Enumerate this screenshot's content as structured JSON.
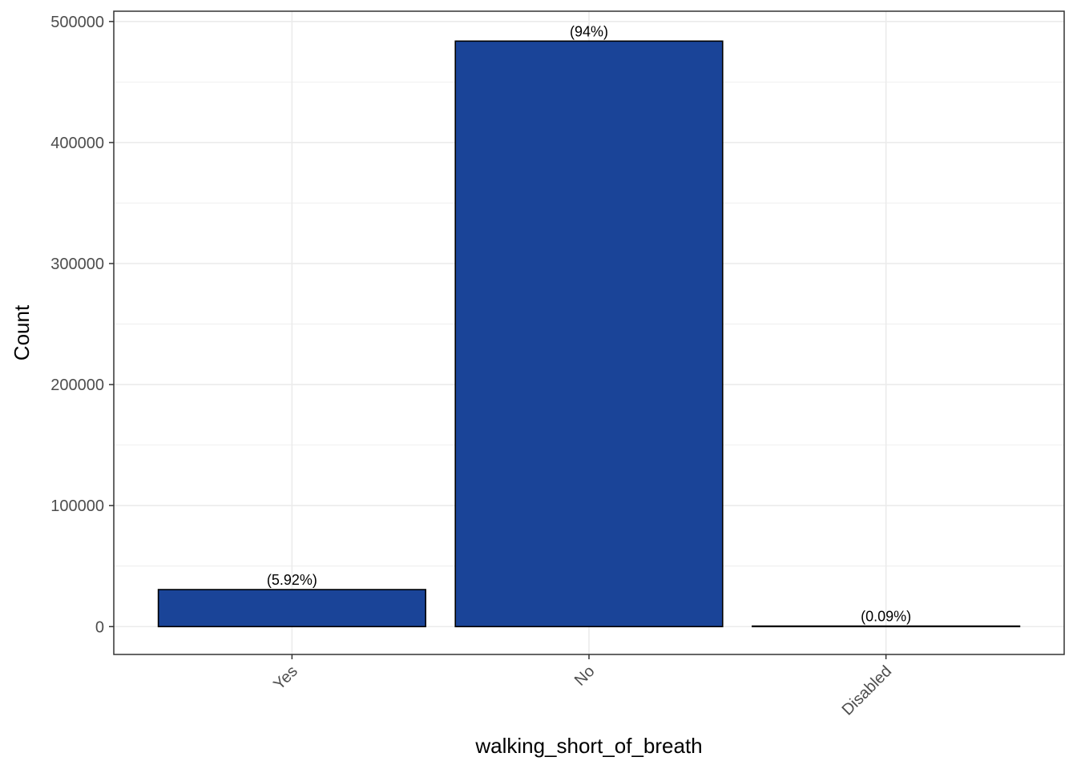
{
  "chart_data": {
    "type": "bar",
    "categories": [
      "Yes",
      "No",
      "Disabled"
    ],
    "values": [
      30600,
      483800,
      460
    ],
    "labels": [
      "(5.92%)",
      "(94%)",
      "(0.09%)"
    ],
    "xlabel": "walking_short_of_breath",
    "ylabel": "Count",
    "ylim": [
      -23000,
      508500
    ],
    "yticks": [
      0,
      100000,
      200000,
      300000,
      400000,
      500000
    ],
    "ytick_labels": [
      "0",
      "100000",
      "200000",
      "300000",
      "400000",
      "500000"
    ],
    "grid": true,
    "legend": "none",
    "colors": {
      "bar_fill": "#1a4498",
      "bar_stroke": "#000000",
      "grid": "#ebebeb",
      "panel_border": "#333333"
    }
  }
}
